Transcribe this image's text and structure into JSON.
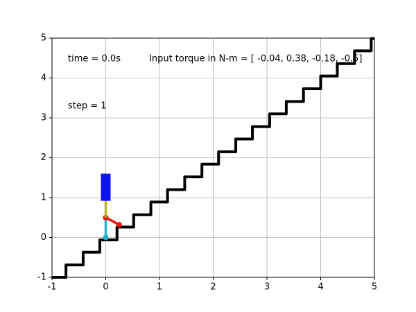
{
  "chart_data": {
    "type": "line",
    "annotations": [
      "time = 0.0s",
      "Input torque in N-m = [ -0.04, 0.38, -0.18, -0.5]",
      "step = 1"
    ],
    "xlim": [
      -1,
      5
    ],
    "ylim": [
      -1,
      5
    ],
    "xticks": [
      -1,
      0,
      1,
      2,
      3,
      4,
      5
    ],
    "yticks": [
      -1,
      0,
      1,
      2,
      3,
      4,
      5
    ],
    "grid": true,
    "series": [
      {
        "color": "#000000",
        "markers": false,
        "x": [
          -1,
          -0.74,
          -0.74,
          -0.42,
          -0.42,
          -0.11,
          -0.11,
          0.21,
          0.21,
          0.52,
          0.52,
          0.84,
          0.84,
          1.15,
          1.15,
          1.47,
          1.47,
          1.79,
          1.79,
          2.1,
          2.1,
          2.42,
          2.42,
          2.73,
          2.73,
          3.05,
          3.05,
          3.36,
          3.36,
          3.68,
          3.68,
          4.0,
          4.0,
          4.31,
          4.31,
          4.63,
          4.63,
          4.94,
          4.94,
          5
        ],
        "values": [
          -1,
          -1,
          -0.69,
          -0.69,
          -0.37,
          -0.37,
          -0.06,
          -0.06,
          0.26,
          0.26,
          0.57,
          0.57,
          0.89,
          0.89,
          1.2,
          1.2,
          1.52,
          1.52,
          1.84,
          1.84,
          2.15,
          2.15,
          2.47,
          2.47,
          2.78,
          2.78,
          3.1,
          3.1,
          3.41,
          3.41,
          3.73,
          3.73,
          4.05,
          4.05,
          4.36,
          4.36,
          4.68,
          4.68,
          4.99,
          4.99
        ]
      },
      {
        "color": "#1fb5c8",
        "markers": true,
        "x": [
          0,
          0
        ],
        "values": [
          0,
          0.5
        ]
      },
      {
        "color": "#e8140c",
        "markers": true,
        "x": [
          0,
          0.25
        ],
        "values": [
          0.5,
          0.32
        ]
      },
      {
        "color": "#b5b52a",
        "markers": false,
        "x": [
          0,
          0
        ],
        "values": [
          0.5,
          1.0
        ]
      },
      {
        "color": "#0a14f0",
        "markers": false,
        "x": [
          0,
          0
        ],
        "values": [
          0.92,
          1.6
        ]
      }
    ]
  }
}
